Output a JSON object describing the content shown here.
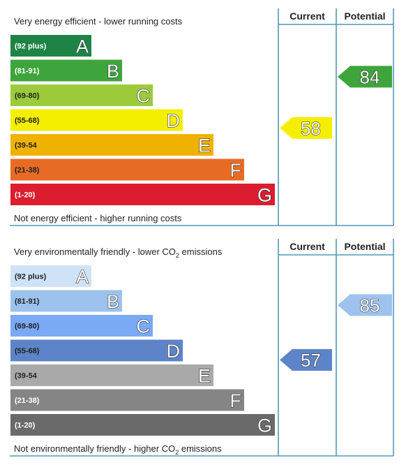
{
  "chart_data": [
    {
      "type": "bar",
      "name": "energy-efficiency-rating",
      "top_text": "Very energy efficient - lower running costs",
      "top_text_sub": "",
      "top_text_tail": "",
      "bottom_text": "Not energy efficient - higher running costs",
      "bottom_text_sub": "",
      "bottom_text_tail": "",
      "columns": [
        "Current",
        "Potential"
      ],
      "bands": [
        {
          "range": "(92 plus)",
          "letter": "A",
          "color": "#1e8446",
          "text_color": "#ffffff"
        },
        {
          "range": "(81-91)",
          "letter": "B",
          "color": "#3ea53c",
          "text_color": "#ffffff"
        },
        {
          "range": "(69-80)",
          "letter": "C",
          "color": "#9cca3b",
          "text_color": "#222222"
        },
        {
          "range": "(55-68)",
          "letter": "D",
          "color": "#f4ee00",
          "text_color": "#222222"
        },
        {
          "range": "(39-54",
          "letter": "E",
          "color": "#f0b200",
          "text_color": "#222222"
        },
        {
          "range": "(21-38)",
          "letter": "F",
          "color": "#e86b25",
          "text_color": "#222222"
        },
        {
          "range": "(1-20)",
          "letter": "G",
          "color": "#dc1d2f",
          "text_color": "#ffffff"
        }
      ],
      "current": {
        "value": 58,
        "band": "D",
        "color": "#f4ee00"
      },
      "potential": {
        "value": 84,
        "band": "B",
        "color": "#3ea53c"
      }
    },
    {
      "type": "bar",
      "name": "environmental-impact-rating",
      "top_text": "Very environmentally friendly - lower CO",
      "top_text_sub": "2",
      "top_text_tail": " emissions",
      "bottom_text": "Not environmentally friendly - higher CO",
      "bottom_text_sub": "2",
      "bottom_text_tail": " emissions",
      "columns": [
        "Current",
        "Potential"
      ],
      "bands": [
        {
          "range": "(92 plus)",
          "letter": "A",
          "color": "#cfe2f8",
          "text_color": "#222222"
        },
        {
          "range": "(81-91)",
          "letter": "B",
          "color": "#9dc2ee",
          "text_color": "#222222"
        },
        {
          "range": "(69-80)",
          "letter": "C",
          "color": "#7aa9f5",
          "text_color": "#222222"
        },
        {
          "range": "(55-68)",
          "letter": "D",
          "color": "#5d84c8",
          "text_color": "#222222"
        },
        {
          "range": "(39-54",
          "letter": "E",
          "color": "#a9a9a9",
          "text_color": "#222222"
        },
        {
          "range": "(21-38)",
          "letter": "F",
          "color": "#858585",
          "text_color": "#ffffff"
        },
        {
          "range": "(1-20)",
          "letter": "G",
          "color": "#6a6a6a",
          "text_color": "#ffffff"
        }
      ],
      "current": {
        "value": 57,
        "band": "D",
        "color": "#5d84c8"
      },
      "potential": {
        "value": 85,
        "band": "B",
        "color": "#9dc2ee"
      }
    }
  ]
}
